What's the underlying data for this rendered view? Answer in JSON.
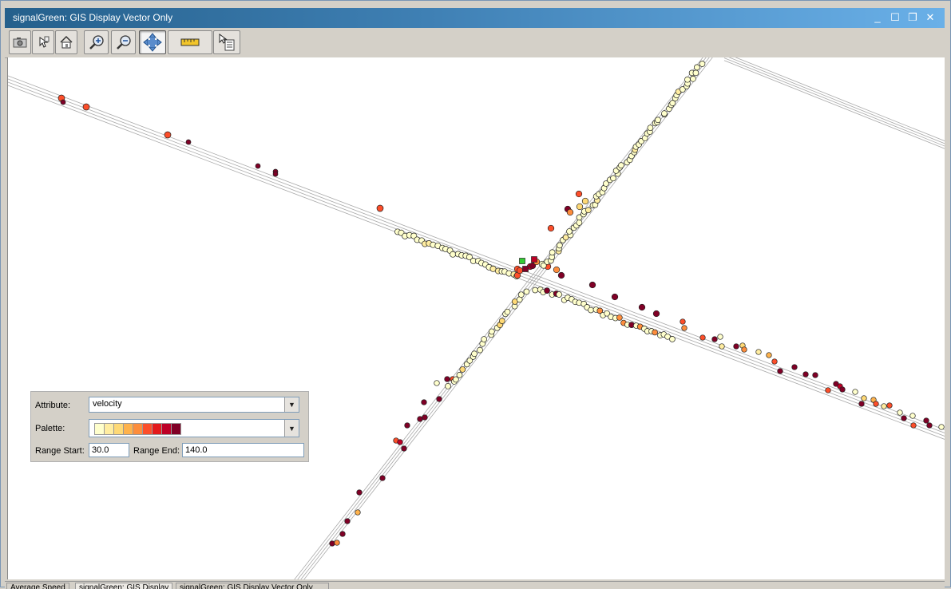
{
  "window": {
    "title": "signalGreen: GIS Display Vector Only",
    "controls": [
      {
        "name": "minimize-button",
        "glyph": "_"
      },
      {
        "name": "maximize-button",
        "glyph": "☐"
      },
      {
        "name": "restore-button",
        "glyph": "❐"
      },
      {
        "name": "close-button",
        "glyph": "✕"
      }
    ]
  },
  "toolbar": {
    "tools": [
      {
        "name": "snapshot-button",
        "icon": "camera-icon"
      },
      {
        "name": "info-button",
        "icon": "info-icon"
      },
      {
        "name": "home-button",
        "icon": "home-icon"
      },
      {
        "name": "zoom-in-button",
        "icon": "zoom-in-icon"
      },
      {
        "name": "zoom-out-button",
        "icon": "zoom-out-icon"
      },
      {
        "name": "pan-button",
        "icon": "pan-icon",
        "active": true
      },
      {
        "name": "measure-button",
        "icon": "ruler-icon"
      },
      {
        "name": "select-button",
        "icon": "select-list-icon"
      }
    ]
  },
  "legend": {
    "attribute_label": "Attribute:",
    "attribute_value": "velocity",
    "palette_label": "Palette:",
    "palette_colors": [
      "#ffffcc",
      "#ffeda0",
      "#fed976",
      "#feb24c",
      "#fd8d3c",
      "#fc4e2a",
      "#e31a1c",
      "#bd0026",
      "#800026"
    ],
    "range_start_label": "Range Start:",
    "range_start_value": "30.0",
    "range_end_label": "Range End:",
    "range_end_value": "140.0"
  },
  "status_tabs": [
    {
      "label": "Average Speed",
      "active": false
    },
    {
      "label": "signalGreen: GIS Display",
      "active": true
    },
    {
      "label": "signalGreen: GIS Display Vector Only",
      "active": false
    }
  ],
  "colors": {
    "title_gradient_start": "#25608c",
    "title_gradient_end": "#6ab0e8",
    "road_line": "#a8a8a8",
    "signal_marker": "#33cc33"
  }
}
